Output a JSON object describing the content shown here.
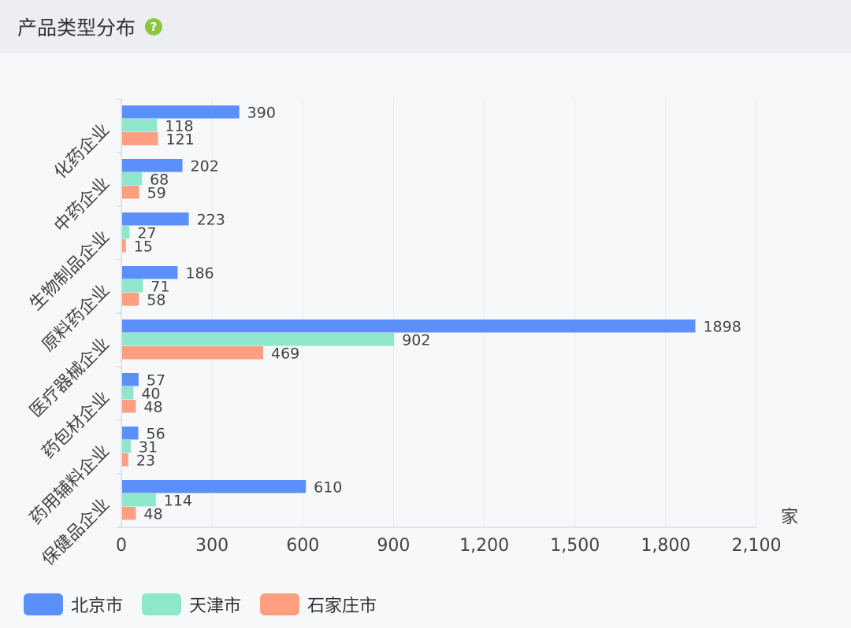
{
  "header": {
    "title": "产品类型分布",
    "help_icon": "question-circle-icon"
  },
  "colors": {
    "beijing": "#5b8ff9",
    "tianjin": "#8de7cb",
    "shijiazhuang": "#ff9f7f",
    "help": "#8cc63f"
  },
  "chart_data": {
    "type": "bar",
    "orientation": "horizontal",
    "categories": [
      "化药企业",
      "中药企业",
      "生物制品企业",
      "原料药企业",
      "医疗器械企业",
      "药包材企业",
      "药用辅料企业",
      "保健品企业"
    ],
    "series": [
      {
        "name": "北京市",
        "values": [
          390,
          202,
          223,
          186,
          1898,
          57,
          56,
          610
        ]
      },
      {
        "name": "天津市",
        "values": [
          118,
          68,
          27,
          71,
          902,
          40,
          31,
          114
        ]
      },
      {
        "name": "石家庄市",
        "values": [
          121,
          59,
          15,
          58,
          469,
          48,
          23,
          48
        ]
      }
    ],
    "unit": "家",
    "xlim": [
      0,
      2100
    ],
    "xticks": [
      0,
      300,
      600,
      900,
      1200,
      1500,
      1800,
      2100
    ],
    "xtick_labels": [
      "0",
      "300",
      "600",
      "900",
      "1,200",
      "1,500",
      "1,800",
      "2,100"
    ],
    "grid": true,
    "legend_position": "bottom-left"
  }
}
